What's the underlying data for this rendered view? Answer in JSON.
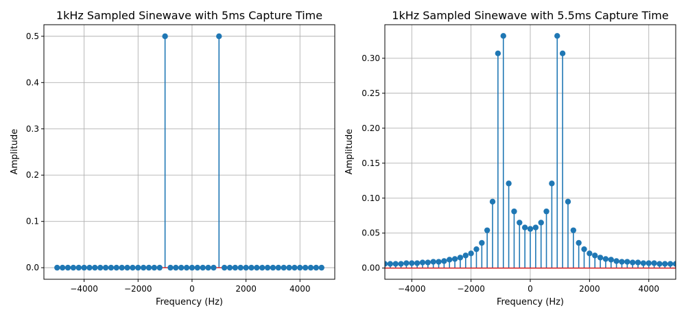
{
  "chart_data": [
    {
      "type": "stem",
      "title": "1kHz Sampled Sinewave with 5ms Capture Time",
      "xlabel": "Frequency (Hz)",
      "ylabel": "Amplitude",
      "xlim": [
        -5490,
        5290
      ],
      "ylim": [
        -0.025,
        0.525
      ],
      "xticks": [
        -4000,
        -2000,
        0,
        2000,
        4000
      ],
      "xtick_labels": [
        "−4000",
        "−2000",
        "0",
        "2000",
        "4000"
      ],
      "yticks": [
        0.0,
        0.1,
        0.2,
        0.3,
        0.4,
        0.5
      ],
      "ytick_labels": [
        "0.0",
        "0.1",
        "0.2",
        "0.3",
        "0.4",
        "0.5"
      ],
      "grid": true,
      "series": [
        {
          "x": [
            -5000,
            -4800,
            -4600,
            -4400,
            -4200,
            -4000,
            -3800,
            -3600,
            -3400,
            -3200,
            -3000,
            -2800,
            -2600,
            -2400,
            -2200,
            -2000,
            -1800,
            -1600,
            -1400,
            -1200,
            -1000,
            -800,
            -600,
            -400,
            -200,
            0,
            200,
            400,
            600,
            800,
            1000,
            1200,
            1400,
            1600,
            1800,
            2000,
            2200,
            2400,
            2600,
            2800,
            3000,
            3200,
            3400,
            3600,
            3800,
            4000,
            4200,
            4400,
            4600,
            4800
          ],
          "values": [
            0,
            0,
            0,
            0,
            0,
            0,
            0,
            0,
            0,
            0,
            0,
            0,
            0,
            0,
            0,
            0,
            0,
            0,
            0,
            0,
            0.5,
            0,
            0,
            0,
            0,
            0,
            0,
            0,
            0,
            0,
            0.5,
            0,
            0,
            0,
            0,
            0,
            0,
            0,
            0,
            0,
            0,
            0,
            0,
            0,
            0,
            0,
            0,
            0,
            0,
            0
          ]
        }
      ],
      "colors": {
        "stem": "#1f77b4",
        "baseline": "#d62728",
        "grid": "#b0b0b0"
      }
    },
    {
      "type": "stem",
      "title": "1kHz Sampled Sinewave with 5.5ms Capture Time",
      "xlabel": "Frequency (Hz)",
      "ylabel": "Amplitude",
      "xlim": [
        -4909,
        4909
      ],
      "ylim": [
        -0.016,
        0.348
      ],
      "xticks": [
        -4000,
        -2000,
        0,
        2000,
        4000
      ],
      "xtick_labels": [
        "−4000",
        "−2000",
        "0",
        "2000",
        "4000"
      ],
      "yticks": [
        0.0,
        0.05,
        0.1,
        0.15,
        0.2,
        0.25,
        0.3
      ],
      "ytick_labels": [
        "0.00",
        "0.05",
        "0.10",
        "0.15",
        "0.20",
        "0.25",
        "0.30"
      ],
      "grid": true,
      "series": [
        {
          "x": [
            -4909,
            -4727,
            -4545,
            -4364,
            -4182,
            -4000,
            -3818,
            -3636,
            -3455,
            -3273,
            -3091,
            -2909,
            -2727,
            -2545,
            -2364,
            -2182,
            -2000,
            -1818,
            -1636,
            -1455,
            -1273,
            -1091,
            -909,
            -727,
            -545,
            -364,
            -182,
            0,
            182,
            364,
            545,
            727,
            909,
            1091,
            1273,
            1455,
            1636,
            1818,
            2000,
            2182,
            2364,
            2545,
            2727,
            2909,
            3091,
            3273,
            3455,
            3636,
            3818,
            4000,
            4182,
            4364,
            4545,
            4727,
            4909
          ],
          "values": [
            0.006,
            0.006,
            0.006,
            0.006,
            0.007,
            0.007,
            0.007,
            0.008,
            0.008,
            0.009,
            0.009,
            0.01,
            0.012,
            0.013,
            0.015,
            0.018,
            0.021,
            0.027,
            0.036,
            0.054,
            0.095,
            0.307,
            0.332,
            0.121,
            0.081,
            0.065,
            0.058,
            0.056,
            0.058,
            0.065,
            0.081,
            0.121,
            0.332,
            0.307,
            0.095,
            0.054,
            0.036,
            0.027,
            0.021,
            0.018,
            0.015,
            0.013,
            0.012,
            0.01,
            0.009,
            0.009,
            0.008,
            0.008,
            0.007,
            0.007,
            0.007,
            0.006,
            0.006,
            0.006,
            0.006
          ]
        }
      ],
      "colors": {
        "stem": "#1f77b4",
        "baseline": "#d62728",
        "grid": "#b0b0b0"
      }
    }
  ]
}
